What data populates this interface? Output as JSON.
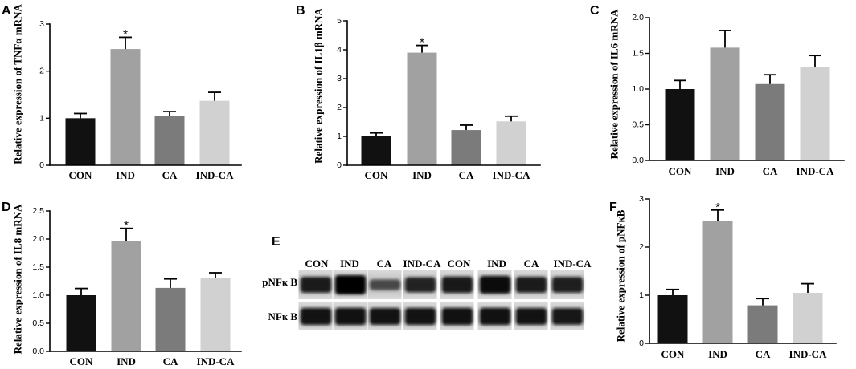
{
  "chart_data": [
    {
      "panel": "A",
      "type": "bar",
      "categories": [
        "CON",
        "IND",
        "CA",
        "IND-CA"
      ],
      "values": [
        1.0,
        2.47,
        1.05,
        1.37
      ],
      "errors": [
        0.1,
        0.25,
        0.09,
        0.18
      ],
      "significance": [
        "",
        "*",
        "",
        ""
      ],
      "ylabel": "Relative expression of TNFα mRNA",
      "ylim": [
        0,
        3
      ],
      "yticks": [
        "0",
        "1",
        "2",
        "3"
      ],
      "grid": false,
      "colors": [
        "#111111",
        "#a1a1a1",
        "#7b7b7b",
        "#d1d1d1"
      ]
    },
    {
      "panel": "B",
      "type": "bar",
      "categories": [
        "CON",
        "IND",
        "CA",
        "IND-CA"
      ],
      "values": [
        1.0,
        3.9,
        1.22,
        1.52
      ],
      "errors": [
        0.12,
        0.25,
        0.17,
        0.18
      ],
      "significance": [
        "",
        "*",
        "",
        ""
      ],
      "ylabel": "Relative expression of IL1β mRNA",
      "ylim": [
        0,
        5
      ],
      "yticks": [
        "0",
        "1",
        "2",
        "3",
        "4",
        "5"
      ],
      "grid": false,
      "colors": [
        "#111111",
        "#a1a1a1",
        "#7b7b7b",
        "#d1d1d1"
      ]
    },
    {
      "panel": "C",
      "type": "bar",
      "categories": [
        "CON",
        "IND",
        "CA",
        "IND-CA"
      ],
      "values": [
        1.0,
        1.58,
        1.07,
        1.31
      ],
      "errors": [
        0.12,
        0.24,
        0.13,
        0.16
      ],
      "significance": [
        "",
        "",
        "",
        ""
      ],
      "ylabel": "Relative expression of IL6 mRNA",
      "ylim": [
        0,
        2
      ],
      "yticks": [
        "0.0",
        "0.5",
        "1.0",
        "1.5",
        "2.0"
      ],
      "grid": false,
      "colors": [
        "#111111",
        "#a1a1a1",
        "#7b7b7b",
        "#d1d1d1"
      ]
    },
    {
      "panel": "D",
      "type": "bar",
      "categories": [
        "CON",
        "IND",
        "CA",
        "IND-CA"
      ],
      "values": [
        1.0,
        1.97,
        1.13,
        1.3
      ],
      "errors": [
        0.12,
        0.22,
        0.16,
        0.1
      ],
      "significance": [
        "",
        "*",
        "",
        ""
      ],
      "ylabel": "Relative expression of IL8 mRNA",
      "ylim": [
        0,
        2.5
      ],
      "yticks": [
        "0.0",
        "0.5",
        "1.0",
        "1.5",
        "2.0",
        "2.5"
      ],
      "grid": false,
      "colors": [
        "#111111",
        "#a1a1a1",
        "#7b7b7b",
        "#d1d1d1"
      ]
    },
    {
      "panel": "F",
      "type": "bar",
      "categories": [
        "CON",
        "IND",
        "CA",
        "IND-CA"
      ],
      "values": [
        1.0,
        2.55,
        0.79,
        1.05
      ],
      "errors": [
        0.12,
        0.22,
        0.14,
        0.19
      ],
      "significance": [
        "",
        "*",
        "",
        ""
      ],
      "ylabel": "Relative expression of pNFκB",
      "ylim": [
        0,
        3
      ],
      "yticks": [
        "0",
        "1",
        "2",
        "3"
      ],
      "grid": false,
      "colors": [
        "#111111",
        "#a1a1a1",
        "#7b7b7b",
        "#d1d1d1"
      ]
    }
  ],
  "blot": {
    "panel": "E",
    "lanes": [
      "CON",
      "IND",
      "CA",
      "IND-CA",
      "CON",
      "IND",
      "CA",
      "IND-CA"
    ],
    "rows": [
      {
        "label": "pNFκ B",
        "intensity": [
          0.78,
          1.0,
          0.42,
          0.72,
          0.8,
          0.9,
          0.78,
          0.76
        ]
      },
      {
        "label": "NFκ B",
        "intensity": [
          0.85,
          0.86,
          0.84,
          0.85,
          0.86,
          0.86,
          0.84,
          0.82
        ]
      }
    ]
  }
}
